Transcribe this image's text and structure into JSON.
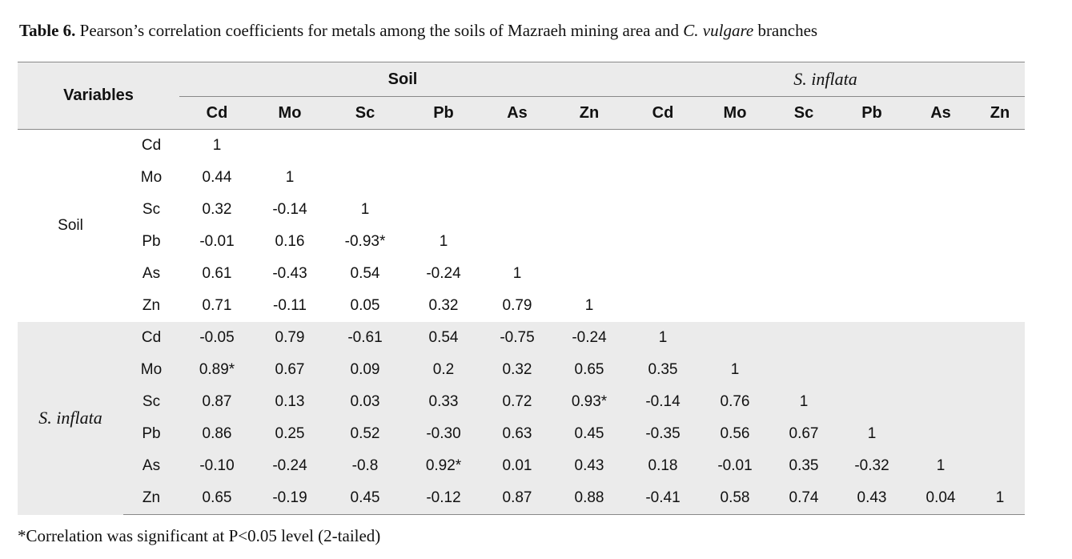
{
  "caption": {
    "label": "Table 6.",
    "text_before": " Pearson’s correlation coefficients for metals among the soils of Mazraeh mining area and ",
    "species": "C. vulgare",
    "text_after": " branches"
  },
  "table": {
    "variables_header": "Variables",
    "group_soil": "Soil",
    "group_inflata": "S. inflata",
    "columns": [
      "Cd",
      "Mo",
      "Sc",
      "Pb",
      "As",
      "Zn",
      "Cd",
      "Mo",
      "Sc",
      "Pb",
      "As",
      "Zn"
    ],
    "groups": [
      {
        "label": "Soil",
        "rows": [
          {
            "var": "Cd",
            "values": [
              "1"
            ]
          },
          {
            "var": "Mo",
            "values": [
              "0.44",
              "1"
            ]
          },
          {
            "var": "Sc",
            "values": [
              "0.32",
              "-0.14",
              "1"
            ]
          },
          {
            "var": "Pb",
            "values": [
              "-0.01",
              "0.16",
              "-0.93*",
              "1"
            ]
          },
          {
            "var": "As",
            "values": [
              "0.61",
              "-0.43",
              "0.54",
              "-0.24",
              "1"
            ]
          },
          {
            "var": "Zn",
            "values": [
              "0.71",
              "-0.11",
              "0.05",
              "0.32",
              "0.79",
              "1"
            ]
          }
        ]
      },
      {
        "label": "S. inflata",
        "rows": [
          {
            "var": "Cd",
            "values": [
              "-0.05",
              "0.79",
              "-0.61",
              "0.54",
              "-0.75",
              "-0.24",
              "1"
            ]
          },
          {
            "var": "Mo",
            "values": [
              "0.89*",
              "0.67",
              "0.09",
              "0.2",
              "0.32",
              "0.65",
              "0.35",
              "1"
            ]
          },
          {
            "var": "Sc",
            "values": [
              "0.87",
              "0.13",
              "0.03",
              "0.33",
              "0.72",
              "0.93*",
              "-0.14",
              "0.76",
              "1"
            ]
          },
          {
            "var": "Pb",
            "values": [
              "0.86",
              "0.25",
              "0.52",
              "-0.30",
              "0.63",
              "0.45",
              "-0.35",
              "0.56",
              "0.67",
              "1"
            ]
          },
          {
            "var": "As",
            "values": [
              "-0.10",
              "-0.24",
              "-0.8",
              "0.92*",
              "0.01",
              "0.43",
              "0.18",
              "-0.01",
              "0.35",
              "-0.32",
              "1"
            ]
          },
          {
            "var": "Zn",
            "values": [
              "0.65",
              "-0.19",
              "0.45",
              "-0.12",
              "0.87",
              "0.88",
              "-0.41",
              "0.58",
              "0.74",
              "0.43",
              "0.04",
              "1"
            ]
          }
        ]
      }
    ]
  },
  "footnote": "*Correlation was significant at P<0.05 level (2-tailed)"
}
